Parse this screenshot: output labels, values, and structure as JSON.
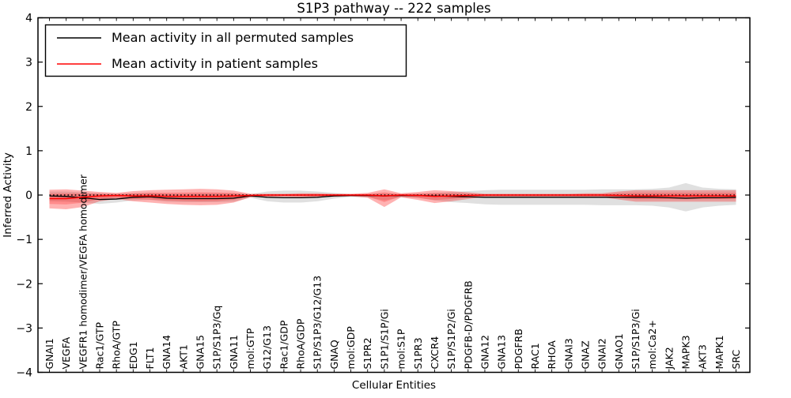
{
  "figure": {
    "background": "#ffffff",
    "axis_color": "#000000"
  },
  "legend": {
    "entries": [
      {
        "label": "Mean activity in all permuted samples",
        "color": "#000000"
      },
      {
        "label": "Mean activity in patient samples",
        "color": "#ff0000"
      }
    ]
  },
  "chart_data": {
    "type": "line",
    "title": "S1P3 pathway -- 222 samples",
    "xlabel": "Cellular Entities",
    "ylabel": "Inferred Activity",
    "ylim": [
      -4,
      4
    ],
    "yticks": [
      -4,
      -3,
      -2,
      -1,
      0,
      1,
      2,
      3,
      4
    ],
    "grid": false,
    "legend_position": "upper left",
    "zero_reference_line": 0,
    "x_tick_label_rotation": 90,
    "categories": [
      "GNAI1",
      "VEGFA",
      "VEGFR1 homodimer/VEGFA homodimer",
      "Rac1/GTP",
      "RhoA/GTP",
      "EDG1",
      "FLT1",
      "GNA14",
      "AKT1",
      "GNA15",
      "S1P/S1P3/Gq",
      "GNA11",
      "mol:GTP",
      "G12/G13",
      "Rac1/GDP",
      "RhoA/GDP",
      "S1P/S1P3/G12/G13",
      "GNAQ",
      "mol:GDP",
      "S1PR2",
      "S1P1/S1P/Gi",
      "mol:S1P",
      "S1PR3",
      "CXCR4",
      "S1P/S1P2/Gi",
      "PDGFB-D/PDGFRB",
      "GNA12",
      "GNA13",
      "PDGFRB",
      "RAC1",
      "RHOA",
      "GNAI3",
      "GNAZ",
      "GNAI2",
      "GNAO1",
      "S1P/S1P3/Gi",
      "mol:Ca2+",
      "JAK2",
      "MAPK3",
      "AKT3",
      "MAPK1",
      "SRC"
    ],
    "series": [
      {
        "name": "Mean activity in all permuted samples",
        "color": "#000000",
        "style": "solid",
        "values": [
          -0.02,
          -0.03,
          -0.06,
          -0.1,
          -0.09,
          -0.05,
          -0.04,
          -0.07,
          -0.08,
          -0.08,
          -0.08,
          -0.07,
          -0.02,
          -0.05,
          -0.06,
          -0.06,
          -0.05,
          -0.02,
          -0.01,
          -0.01,
          -0.02,
          -0.01,
          -0.01,
          -0.02,
          -0.03,
          -0.04,
          -0.05,
          -0.05,
          -0.05,
          -0.05,
          -0.05,
          -0.05,
          -0.05,
          -0.05,
          -0.05,
          -0.05,
          -0.05,
          -0.06,
          -0.07,
          -0.06,
          -0.06,
          -0.05
        ]
      },
      {
        "name": "Mean activity in patient samples",
        "color": "#ff0000",
        "style": "solid",
        "values": [
          -0.08,
          -0.08,
          -0.05,
          -0.02,
          -0.01,
          -0.02,
          -0.02,
          -0.03,
          -0.03,
          -0.03,
          -0.03,
          -0.02,
          -0.01,
          0.0,
          0.0,
          0.0,
          0.0,
          0.0,
          0.0,
          0.0,
          -0.02,
          0.0,
          -0.01,
          -0.03,
          -0.02,
          -0.01,
          0.0,
          0.0,
          0.0,
          0.0,
          0.0,
          0.0,
          0.0,
          0.0,
          -0.01,
          -0.02,
          -0.02,
          -0.02,
          -0.02,
          -0.02,
          -0.02,
          -0.02
        ]
      }
    ],
    "bands": [
      {
        "name": "permuted-samples-spread",
        "color": "rgba(0,0,0,0.12)",
        "upper": [
          0.08,
          0.08,
          0.06,
          0.04,
          0.03,
          0.04,
          0.05,
          0.03,
          0.03,
          0.04,
          0.04,
          0.04,
          0.02,
          0.08,
          0.1,
          0.1,
          0.08,
          0.05,
          0.02,
          0.02,
          0.04,
          0.02,
          0.03,
          0.05,
          0.07,
          0.09,
          0.11,
          0.12,
          0.12,
          0.12,
          0.12,
          0.12,
          0.12,
          0.13,
          0.13,
          0.13,
          0.14,
          0.17,
          0.27,
          0.17,
          0.14,
          0.13
        ],
        "lower": [
          -0.14,
          -0.15,
          -0.17,
          -0.2,
          -0.17,
          -0.12,
          -0.11,
          -0.15,
          -0.16,
          -0.16,
          -0.16,
          -0.15,
          -0.06,
          -0.14,
          -0.17,
          -0.17,
          -0.14,
          -0.08,
          -0.04,
          -0.05,
          -0.12,
          -0.05,
          -0.06,
          -0.12,
          -0.16,
          -0.18,
          -0.21,
          -0.22,
          -0.22,
          -0.22,
          -0.22,
          -0.22,
          -0.22,
          -0.23,
          -0.23,
          -0.23,
          -0.24,
          -0.28,
          -0.37,
          -0.28,
          -0.24,
          -0.22
        ]
      },
      {
        "name": "patient-samples-spread",
        "color": "rgba(255,0,0,0.30)",
        "inner_color": "rgba(255,0,0,0.22)",
        "upper": [
          0.12,
          0.13,
          0.1,
          0.07,
          0.05,
          0.09,
          0.11,
          0.12,
          0.13,
          0.14,
          0.13,
          0.1,
          0.03,
          0.03,
          0.03,
          0.04,
          0.04,
          0.03,
          0.03,
          0.05,
          0.13,
          0.04,
          0.07,
          0.11,
          0.09,
          0.06,
          0.03,
          0.03,
          0.03,
          0.03,
          0.03,
          0.03,
          0.04,
          0.04,
          0.08,
          0.11,
          0.11,
          0.11,
          0.11,
          0.11,
          0.11,
          0.11
        ],
        "lower": [
          -0.3,
          -0.32,
          -0.27,
          -0.14,
          -0.09,
          -0.14,
          -0.17,
          -0.2,
          -0.22,
          -0.23,
          -0.22,
          -0.17,
          -0.05,
          -0.04,
          -0.04,
          -0.05,
          -0.05,
          -0.04,
          -0.03,
          -0.06,
          -0.27,
          -0.05,
          -0.11,
          -0.18,
          -0.14,
          -0.09,
          -0.04,
          -0.04,
          -0.04,
          -0.04,
          -0.04,
          -0.04,
          -0.05,
          -0.05,
          -0.1,
          -0.15,
          -0.15,
          -0.15,
          -0.15,
          -0.15,
          -0.15,
          -0.15
        ]
      }
    ]
  }
}
